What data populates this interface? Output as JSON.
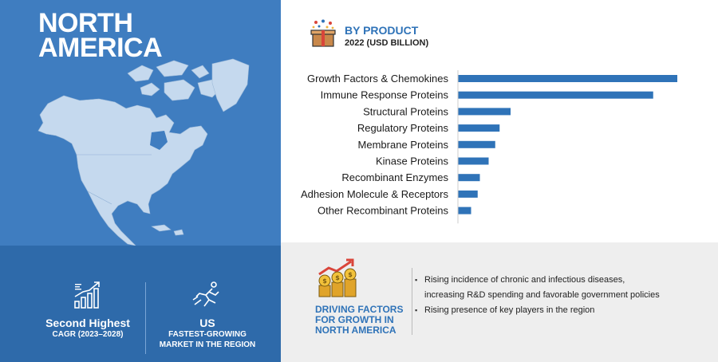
{
  "region": {
    "title_line1": "NORTH",
    "title_line2": "AMERICA"
  },
  "stats": [
    {
      "big": "Second Highest",
      "small1": "CAGR (2023–2028)",
      "small2": "",
      "icon": "rising-bar-chart-icon"
    },
    {
      "big": "US",
      "small1": "FASTEST-GROWING",
      "small2": "MARKET IN THE REGION",
      "icon": "runner-icon"
    }
  ],
  "product": {
    "title": "BY PRODUCT",
    "subtitle": "2022 (USD BILLION)",
    "icon": "gift-box-icon"
  },
  "colors": {
    "bar": "#2f73b8",
    "left_panel": "#3f7dc0",
    "left_bottom": "#2e6aaa",
    "map": "#c5d9ee",
    "bottom_panel": "#eeeeee"
  },
  "chart_data": {
    "type": "bar",
    "orientation": "horizontal",
    "categories": [
      "Growth Factors & Chemokines",
      "Immune Response Proteins",
      "Structural Proteins",
      "Regulatory Proteins",
      "Membrane Proteins",
      "Kinase Proteins",
      "Recombinant Enzymes",
      "Adhesion Molecule & Receptors",
      "Other Recombinant Proteins"
    ],
    "values": [
      100,
      89,
      24,
      19,
      17,
      14,
      10,
      9,
      6
    ],
    "xlim": [
      0,
      100
    ],
    "axis_labels_shown": false,
    "grid": false
  },
  "driving": {
    "title_line1": "DRIVING FACTORS",
    "title_line2": "FOR GROWTH IN",
    "title_line3": "NORTH AMERICA",
    "icon": "coins-growth-icon",
    "bullets": [
      {
        "text": "Rising incidence of chronic and infectious diseases,",
        "dot": true
      },
      {
        "text": "increasing R&D spending and favorable government policies",
        "dot": false
      },
      {
        "text": "Rising presence of key players in the region",
        "dot": true
      }
    ]
  }
}
